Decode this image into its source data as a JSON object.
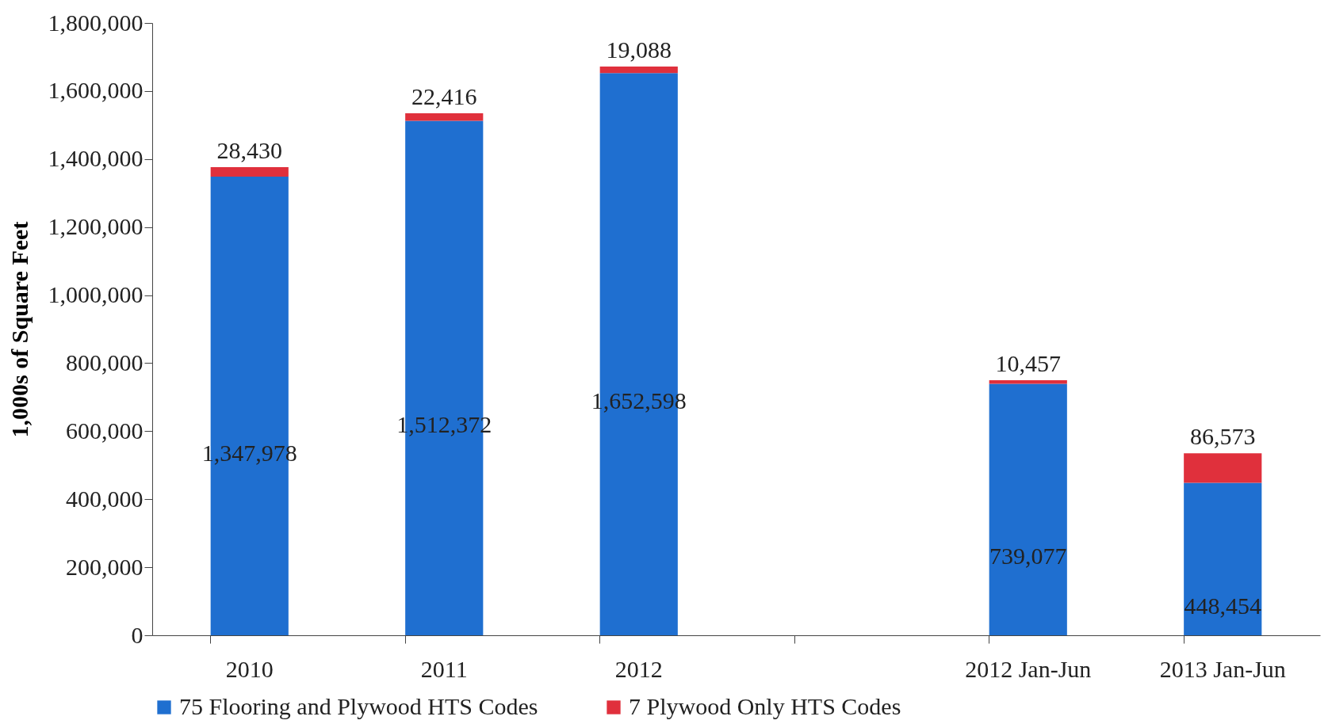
{
  "chart_data": {
    "type": "bar",
    "stacked": true,
    "ylabel": "1,000s of Square Feet",
    "categories": [
      "2010",
      "2011",
      "2012",
      null,
      "2012 Jan-Jun",
      "2013 Jan-Jun"
    ],
    "series": [
      {
        "name": "75 Flooring and Plywood HTS Codes",
        "color": "#1f6fd0",
        "values": [
          1347978,
          1512372,
          1652598,
          null,
          739077,
          448454
        ],
        "value_labels": [
          "1,347,978",
          "1,512,372",
          "1,652,598",
          null,
          "739,077",
          "448,454"
        ]
      },
      {
        "name": "7 Plywood Only HTS Codes",
        "color": "#e0303c",
        "values": [
          28430,
          22416,
          19088,
          null,
          10457,
          86573
        ],
        "value_labels": [
          "28,430",
          "22,416",
          "19,088",
          null,
          "10,457",
          "86,573"
        ]
      }
    ],
    "ylim": [
      0,
      1800000
    ],
    "yticks": [
      0,
      {
        "value": 200000,
        "label": "200,000"
      },
      {
        "value": 400000,
        "label": "400,000"
      },
      {
        "value": 600000,
        "label": "600,000"
      },
      {
        "value": 800000,
        "label": "800,000"
      },
      {
        "value": 1000000,
        "label": "1,000,000"
      },
      {
        "value": 1200000,
        "label": "1,200,000"
      },
      {
        "value": 1400000,
        "label": "1,400,000"
      },
      {
        "value": 1600000,
        "label": "1,600,000"
      },
      {
        "value": 1800000,
        "label": "1,800,000"
      }
    ],
    "grid": false,
    "legend": "bottom"
  }
}
